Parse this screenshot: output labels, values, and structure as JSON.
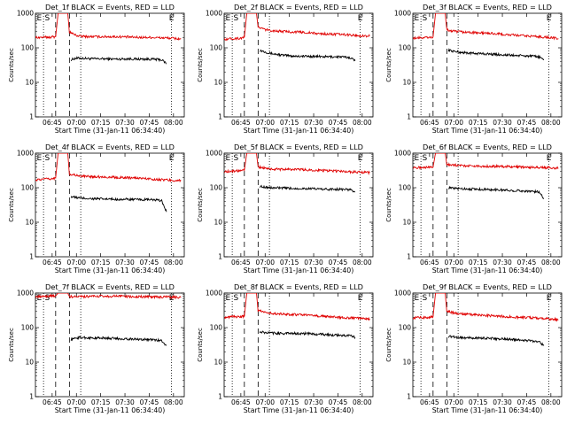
{
  "figure": {
    "rows": 3,
    "cols": 3,
    "colors": {
      "events": "#000000",
      "lld": "#e00000",
      "axes": "#000000",
      "background": "#ffffff"
    }
  },
  "chart_data": [
    {
      "type": "line",
      "title": "Det_1f BLACK = Events, RED = LLD",
      "xlabel": "Start Time (31-Jan-11 06:34:40)",
      "ylabel": "Counts/sec",
      "y_scale": "log",
      "ylim": [
        1,
        1000
      ],
      "xlim_minutes_after_start": [
        0,
        92
      ],
      "x_tick_labels": [
        "06:45",
        "07:00",
        "07:15",
        "07:30",
        "07:45",
        "08:00"
      ],
      "y_tick_labels": [
        "1",
        "10",
        "100",
        "1000"
      ],
      "markers": [
        "E",
        "S",
        "E"
      ],
      "series": [
        {
          "name": "Events",
          "x": [
            22,
            25,
            28,
            35,
            42,
            50,
            57,
            64,
            71,
            78,
            81
          ],
          "y": [
            45,
            50,
            50,
            48,
            48,
            47,
            48,
            47,
            47,
            45,
            35
          ]
        },
        {
          "name": "LLD",
          "x": [
            0,
            5,
            10,
            12.5,
            14,
            20,
            21,
            25,
            28,
            35,
            42,
            50,
            57,
            64,
            71,
            78,
            84,
            90
          ],
          "y": [
            200,
            200,
            205,
            210,
            1000,
            1000,
            290,
            230,
            215,
            210,
            210,
            210,
            205,
            200,
            200,
            195,
            190,
            180
          ]
        }
      ]
    },
    {
      "type": "line",
      "title": "Det_2f BLACK = Events, RED = LLD",
      "xlabel": "Start Time (31-Jan-11 06:34:40)",
      "ylabel": "Counts/sec",
      "y_scale": "log",
      "ylim": [
        1,
        1000
      ],
      "xlim_minutes_after_start": [
        0,
        92
      ],
      "x_tick_labels": [
        "06:45",
        "07:00",
        "07:15",
        "07:30",
        "07:45",
        "08:00"
      ],
      "y_tick_labels": [
        "1",
        "10",
        "100",
        "1000"
      ],
      "markers": [
        "E",
        "S",
        "E"
      ],
      "series": [
        {
          "name": "Events",
          "x": [
            22,
            25,
            28,
            35,
            42,
            50,
            57,
            64,
            71,
            78,
            81
          ],
          "y": [
            85,
            78,
            70,
            62,
            58,
            57,
            56,
            55,
            55,
            52,
            42
          ]
        },
        {
          "name": "LLD",
          "x": [
            0,
            5,
            10,
            12.5,
            14,
            20,
            21,
            25,
            28,
            35,
            42,
            50,
            57,
            64,
            71,
            78,
            84,
            90
          ],
          "y": [
            180,
            185,
            190,
            200,
            1000,
            1000,
            400,
            340,
            320,
            300,
            290,
            280,
            260,
            250,
            245,
            235,
            225,
            220
          ]
        }
      ]
    },
    {
      "type": "line",
      "title": "Det_3f BLACK = Events, RED = LLD",
      "xlabel": "Start Time (31-Jan-11 06:34:40)",
      "ylabel": "Counts/sec",
      "y_scale": "log",
      "ylim": [
        1,
        1000
      ],
      "xlim_minutes_after_start": [
        0,
        92
      ],
      "x_tick_labels": [
        "06:45",
        "07:00",
        "07:15",
        "07:30",
        "07:45",
        "08:00"
      ],
      "y_tick_labels": [
        "1",
        "10",
        "100",
        "1000"
      ],
      "markers": [
        "E",
        "S",
        "E"
      ],
      "series": [
        {
          "name": "Events",
          "x": [
            22,
            25,
            28,
            35,
            42,
            50,
            57,
            64,
            71,
            78,
            81
          ],
          "y": [
            85,
            80,
            75,
            70,
            68,
            65,
            62,
            60,
            58,
            55,
            45
          ]
        },
        {
          "name": "LLD",
          "x": [
            0,
            5,
            10,
            12.5,
            14,
            20,
            21,
            25,
            28,
            35,
            42,
            50,
            57,
            64,
            71,
            78,
            84,
            90
          ],
          "y": [
            190,
            195,
            200,
            205,
            1000,
            1000,
            330,
            300,
            290,
            280,
            270,
            260,
            240,
            230,
            220,
            210,
            200,
            185
          ]
        }
      ]
    },
    {
      "type": "line",
      "title": "Det_4f BLACK = Events, RED = LLD",
      "xlabel": "Start Time (31-Jan-11 06:34:40)",
      "ylabel": "Counts/sec",
      "y_scale": "log",
      "ylim": [
        1,
        1000
      ],
      "xlim_minutes_after_start": [
        0,
        92
      ],
      "x_tick_labels": [
        "06:45",
        "07:00",
        "07:15",
        "07:30",
        "07:45",
        "08:00"
      ],
      "y_tick_labels": [
        "1",
        "10",
        "100",
        "1000"
      ],
      "markers": [
        "E",
        "S",
        "E"
      ],
      "series": [
        {
          "name": "Events",
          "x": [
            22,
            25,
            28,
            35,
            42,
            50,
            57,
            64,
            71,
            78,
            81
          ],
          "y": [
            55,
            52,
            50,
            48,
            47,
            46,
            46,
            45,
            45,
            42,
            20
          ]
        },
        {
          "name": "LLD",
          "x": [
            0,
            5,
            10,
            12.5,
            14,
            20,
            21,
            25,
            28,
            35,
            42,
            50,
            57,
            64,
            71,
            78,
            84,
            90
          ],
          "y": [
            170,
            175,
            180,
            190,
            1000,
            1000,
            250,
            230,
            215,
            210,
            205,
            200,
            195,
            190,
            180,
            170,
            165,
            160
          ]
        }
      ]
    },
    {
      "type": "line",
      "title": "Det_5f BLACK = Events, RED = LLD",
      "xlabel": "Start Time (31-Jan-11 06:34:40)",
      "ylabel": "Counts/sec",
      "y_scale": "log",
      "ylim": [
        1,
        1000
      ],
      "xlim_minutes_after_start": [
        0,
        92
      ],
      "x_tick_labels": [
        "06:45",
        "07:00",
        "07:15",
        "07:30",
        "07:45",
        "08:00"
      ],
      "y_tick_labels": [
        "1",
        "10",
        "100",
        "1000"
      ],
      "markers": [
        "E",
        "S",
        "E"
      ],
      "series": [
        {
          "name": "Events",
          "x": [
            22,
            25,
            28,
            35,
            42,
            50,
            57,
            64,
            71,
            78,
            81
          ],
          "y": [
            110,
            105,
            100,
            98,
            95,
            95,
            92,
            90,
            90,
            88,
            75
          ]
        },
        {
          "name": "LLD",
          "x": [
            0,
            5,
            10,
            12.5,
            14,
            20,
            21,
            25,
            28,
            35,
            42,
            50,
            57,
            64,
            71,
            78,
            84,
            90
          ],
          "y": [
            290,
            300,
            310,
            320,
            1000,
            1000,
            400,
            370,
            350,
            340,
            340,
            330,
            320,
            310,
            300,
            290,
            280,
            270
          ]
        }
      ]
    },
    {
      "type": "line",
      "title": "Det_6f BLACK = Events, RED = LLD",
      "xlabel": "Start Time (31-Jan-11 06:34:40)",
      "ylabel": "Counts/sec",
      "y_scale": "log",
      "ylim": [
        1,
        1000
      ],
      "xlim_minutes_after_start": [
        0,
        92
      ],
      "x_tick_labels": [
        "06:45",
        "07:00",
        "07:15",
        "07:30",
        "07:45",
        "08:00"
      ],
      "y_tick_labels": [
        "1",
        "10",
        "100",
        "1000"
      ],
      "markers": [
        "E",
        "S",
        "E"
      ],
      "series": [
        {
          "name": "Events",
          "x": [
            22,
            25,
            28,
            35,
            42,
            50,
            57,
            64,
            71,
            78,
            81
          ],
          "y": [
            100,
            95,
            95,
            92,
            90,
            88,
            85,
            82,
            80,
            75,
            50
          ]
        },
        {
          "name": "LLD",
          "x": [
            0,
            5,
            10,
            12.5,
            14,
            20,
            21,
            25,
            28,
            35,
            42,
            50,
            57,
            64,
            71,
            78,
            84,
            90
          ],
          "y": [
            380,
            385,
            390,
            395,
            1000,
            1000,
            480,
            460,
            440,
            430,
            420,
            415,
            410,
            400,
            390,
            385,
            380,
            370
          ]
        }
      ]
    },
    {
      "type": "line",
      "title": "Det_7f BLACK = Events, RED = LLD",
      "xlabel": "Start Time (31-Jan-11 06:34:40)",
      "ylabel": "Counts/sec",
      "y_scale": "log",
      "ylim": [
        1,
        1000
      ],
      "xlim_minutes_after_start": [
        0,
        92
      ],
      "x_tick_labels": [
        "06:45",
        "07:00",
        "07:15",
        "07:30",
        "07:45",
        "08:00"
      ],
      "y_tick_labels": [
        "1",
        "10",
        "100",
        "1000"
      ],
      "markers": [
        "E",
        "S",
        "E"
      ],
      "series": [
        {
          "name": "Events",
          "x": [
            22,
            25,
            28,
            35,
            42,
            50,
            57,
            64,
            71,
            78,
            81
          ],
          "y": [
            45,
            50,
            52,
            50,
            50,
            48,
            47,
            46,
            45,
            42,
            30
          ]
        },
        {
          "name": "LLD",
          "x": [
            0,
            5,
            10,
            12.5,
            14,
            20,
            21,
            25,
            28,
            35,
            42,
            50,
            57,
            64,
            71,
            78,
            84,
            90
          ],
          "y": [
            780,
            800,
            820,
            830,
            1000,
            1000,
            800,
            780,
            790,
            800,
            810,
            820,
            800,
            790,
            780,
            770,
            760,
            750
          ]
        }
      ]
    },
    {
      "type": "line",
      "title": "Det_8f BLACK = Events, RED = LLD",
      "xlabel": "Start Time (31-Jan-11 06:34:40)",
      "ylabel": "Counts/sec",
      "y_scale": "log",
      "ylim": [
        1,
        1000
      ],
      "xlim_minutes_after_start": [
        0,
        92
      ],
      "x_tick_labels": [
        "06:45",
        "07:00",
        "07:15",
        "07:30",
        "07:45",
        "08:00"
      ],
      "y_tick_labels": [
        "1",
        "10",
        "100",
        "1000"
      ],
      "markers": [
        "E",
        "S",
        "E"
      ],
      "series": [
        {
          "name": "Events",
          "x": [
            22,
            25,
            28,
            35,
            42,
            50,
            57,
            64,
            71,
            78,
            81
          ],
          "y": [
            75,
            72,
            70,
            68,
            68,
            67,
            65,
            62,
            60,
            58,
            52
          ]
        },
        {
          "name": "LLD",
          "x": [
            0,
            5,
            10,
            12.5,
            14,
            20,
            21,
            25,
            28,
            35,
            42,
            50,
            57,
            64,
            71,
            78,
            84,
            90
          ],
          "y": [
            200,
            205,
            210,
            215,
            1000,
            1000,
            310,
            280,
            260,
            250,
            240,
            230,
            220,
            210,
            200,
            190,
            185,
            180
          ]
        }
      ]
    },
    {
      "type": "line",
      "title": "Det_9f BLACK = Events, RED = LLD",
      "xlabel": "Start Time (31-Jan-11 06:34:40)",
      "ylabel": "Counts/sec",
      "y_scale": "log",
      "ylim": [
        1,
        1000
      ],
      "xlim_minutes_after_start": [
        0,
        92
      ],
      "x_tick_labels": [
        "06:45",
        "07:00",
        "07:15",
        "07:30",
        "07:45",
        "08:00"
      ],
      "y_tick_labels": [
        "1",
        "10",
        "100",
        "1000"
      ],
      "markers": [
        "E",
        "S",
        "E"
      ],
      "series": [
        {
          "name": "Events",
          "x": [
            22,
            25,
            28,
            35,
            42,
            50,
            57,
            64,
            71,
            78,
            81
          ],
          "y": [
            55,
            55,
            52,
            50,
            50,
            48,
            46,
            45,
            42,
            40,
            30
          ]
        },
        {
          "name": "LLD",
          "x": [
            0,
            5,
            10,
            12.5,
            14,
            20,
            21,
            25,
            28,
            35,
            42,
            50,
            57,
            64,
            71,
            78,
            84,
            90
          ],
          "y": [
            190,
            195,
            200,
            205,
            1000,
            1000,
            300,
            270,
            250,
            240,
            230,
            220,
            210,
            200,
            195,
            185,
            180,
            170
          ]
        }
      ]
    }
  ]
}
